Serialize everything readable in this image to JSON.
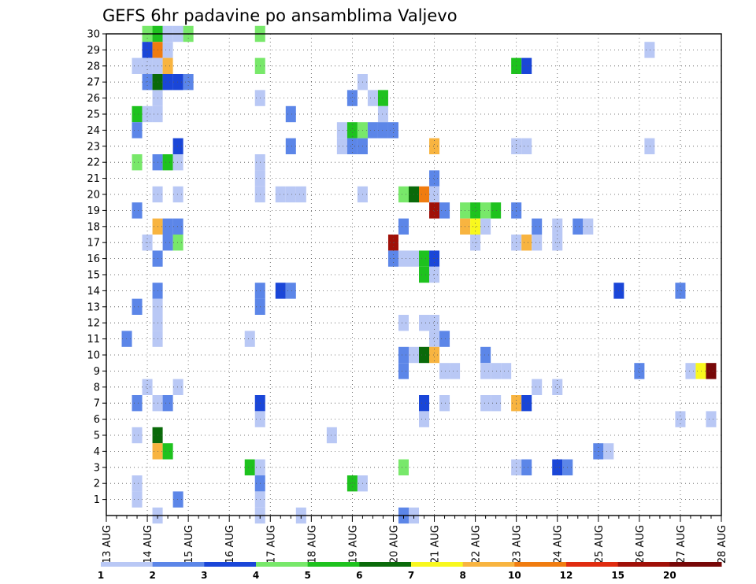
{
  "chart_data": {
    "type": "heatmap",
    "title": "GEFS 6hr padavine po ansamblima Valjevo",
    "xlabel": "",
    "ylabel": "",
    "x_tick_labels": [
      "13 AUG",
      "14 AUG",
      "15 AUG",
      "16 AUG",
      "17 AUG",
      "18 AUG",
      "19 AUG",
      "20 AUG",
      "21 AUG",
      "22 AUG",
      "23 AUG",
      "24 AUG",
      "25 AUG",
      "26 AUG",
      "27 AUG",
      "28 AUG"
    ],
    "y_tick_labels": [
      "1",
      "2",
      "3",
      "4",
      "5",
      "6",
      "7",
      "8",
      "9",
      "10",
      "11",
      "12",
      "13",
      "14",
      "15",
      "16",
      "17",
      "18",
      "19",
      "20",
      "21",
      "22",
      "23",
      "24",
      "25",
      "26",
      "27",
      "28",
      "29",
      "30"
    ],
    "xlim_days": [
      0,
      15
    ],
    "ylim_members": [
      0,
      30
    ],
    "grid": true,
    "colorbar": {
      "position": "bottom",
      "levels": [
        1,
        2,
        3,
        4,
        5,
        6,
        7,
        8,
        10,
        12,
        15,
        20
      ],
      "colors": [
        "#b9c8f5",
        "#5c86e8",
        "#1a46d8",
        "#78e86a",
        "#1ec21e",
        "#0a6a0a",
        "#f8f81e",
        "#f8b440",
        "#f07c10",
        "#e02c10",
        "#a01008",
        "#780808"
      ]
    },
    "cells": [
      {
        "member": 30,
        "step": 4,
        "cls": 4
      },
      {
        "member": 30,
        "step": 5,
        "cls": 5
      },
      {
        "member": 30,
        "step": 6,
        "cls": 1
      },
      {
        "member": 30,
        "step": 7,
        "cls": 1
      },
      {
        "member": 30,
        "step": 8,
        "cls": 4
      },
      {
        "member": 30,
        "step": 15,
        "cls": 4
      },
      {
        "member": 29,
        "step": 4,
        "cls": 3
      },
      {
        "member": 29,
        "step": 5,
        "cls": 9
      },
      {
        "member": 29,
        "step": 6,
        "cls": 1
      },
      {
        "member": 29,
        "step": 53,
        "cls": 1
      },
      {
        "member": 28,
        "step": 3,
        "cls": 1
      },
      {
        "member": 28,
        "step": 4,
        "cls": 1
      },
      {
        "member": 28,
        "step": 5,
        "cls": 1
      },
      {
        "member": 28,
        "step": 6,
        "cls": 8
      },
      {
        "member": 28,
        "step": 15,
        "cls": 4
      },
      {
        "member": 28,
        "step": 40,
        "cls": 5
      },
      {
        "member": 28,
        "step": 41,
        "cls": 3
      },
      {
        "member": 27,
        "step": 4,
        "cls": 2
      },
      {
        "member": 27,
        "step": 5,
        "cls": 6
      },
      {
        "member": 27,
        "step": 6,
        "cls": 3
      },
      {
        "member": 27,
        "step": 7,
        "cls": 3
      },
      {
        "member": 27,
        "step": 8,
        "cls": 2
      },
      {
        "member": 27,
        "step": 25,
        "cls": 1
      },
      {
        "member": 26,
        "step": 5,
        "cls": 1
      },
      {
        "member": 26,
        "step": 15,
        "cls": 1
      },
      {
        "member": 26,
        "step": 24,
        "cls": 2
      },
      {
        "member": 26,
        "step": 26,
        "cls": 1
      },
      {
        "member": 26,
        "step": 27,
        "cls": 5
      },
      {
        "member": 25,
        "step": 3,
        "cls": 5
      },
      {
        "member": 25,
        "step": 4,
        "cls": 1
      },
      {
        "member": 25,
        "step": 5,
        "cls": 1
      },
      {
        "member": 25,
        "step": 18,
        "cls": 2
      },
      {
        "member": 25,
        "step": 27,
        "cls": 1
      },
      {
        "member": 24,
        "step": 3,
        "cls": 2
      },
      {
        "member": 24,
        "step": 23,
        "cls": 1
      },
      {
        "member": 24,
        "step": 24,
        "cls": 5
      },
      {
        "member": 24,
        "step": 25,
        "cls": 4
      },
      {
        "member": 24,
        "step": 26,
        "cls": 2
      },
      {
        "member": 24,
        "step": 27,
        "cls": 2
      },
      {
        "member": 24,
        "step": 28,
        "cls": 2
      },
      {
        "member": 23,
        "step": 7,
        "cls": 3
      },
      {
        "member": 23,
        "step": 18,
        "cls": 2
      },
      {
        "member": 23,
        "step": 23,
        "cls": 1
      },
      {
        "member": 23,
        "step": 24,
        "cls": 2
      },
      {
        "member": 23,
        "step": 25,
        "cls": 2
      },
      {
        "member": 23,
        "step": 32,
        "cls": 8
      },
      {
        "member": 23,
        "step": 40,
        "cls": 1
      },
      {
        "member": 23,
        "step": 41,
        "cls": 1
      },
      {
        "member": 23,
        "step": 53,
        "cls": 1
      },
      {
        "member": 22,
        "step": 3,
        "cls": 4
      },
      {
        "member": 22,
        "step": 5,
        "cls": 2
      },
      {
        "member": 22,
        "step": 6,
        "cls": 5
      },
      {
        "member": 22,
        "step": 7,
        "cls": 1
      },
      {
        "member": 22,
        "step": 15,
        "cls": 1
      },
      {
        "member": 21,
        "step": 15,
        "cls": 1
      },
      {
        "member": 21,
        "step": 32,
        "cls": 2
      },
      {
        "member": 20,
        "step": 5,
        "cls": 1
      },
      {
        "member": 20,
        "step": 7,
        "cls": 1
      },
      {
        "member": 20,
        "step": 15,
        "cls": 1
      },
      {
        "member": 20,
        "step": 17,
        "cls": 1
      },
      {
        "member": 20,
        "step": 18,
        "cls": 1
      },
      {
        "member": 20,
        "step": 19,
        "cls": 1
      },
      {
        "member": 20,
        "step": 25,
        "cls": 1
      },
      {
        "member": 20,
        "step": 29,
        "cls": 4
      },
      {
        "member": 20,
        "step": 30,
        "cls": 6
      },
      {
        "member": 20,
        "step": 31,
        "cls": 9
      },
      {
        "member": 20,
        "step": 32,
        "cls": 1
      },
      {
        "member": 19,
        "step": 3,
        "cls": 2
      },
      {
        "member": 19,
        "step": 32,
        "cls": 11
      },
      {
        "member": 19,
        "step": 33,
        "cls": 2
      },
      {
        "member": 19,
        "step": 35,
        "cls": 4
      },
      {
        "member": 19,
        "step": 36,
        "cls": 5
      },
      {
        "member": 19,
        "step": 37,
        "cls": 4
      },
      {
        "member": 19,
        "step": 38,
        "cls": 5
      },
      {
        "member": 19,
        "step": 40,
        "cls": 2
      },
      {
        "member": 18,
        "step": 5,
        "cls": 8
      },
      {
        "member": 18,
        "step": 6,
        "cls": 2
      },
      {
        "member": 18,
        "step": 7,
        "cls": 2
      },
      {
        "member": 18,
        "step": 29,
        "cls": 2
      },
      {
        "member": 18,
        "step": 35,
        "cls": 8
      },
      {
        "member": 18,
        "step": 36,
        "cls": 7
      },
      {
        "member": 18,
        "step": 37,
        "cls": 1
      },
      {
        "member": 18,
        "step": 42,
        "cls": 2
      },
      {
        "member": 18,
        "step": 44,
        "cls": 1
      },
      {
        "member": 18,
        "step": 46,
        "cls": 2
      },
      {
        "member": 18,
        "step": 47,
        "cls": 1
      },
      {
        "member": 17,
        "step": 4,
        "cls": 1
      },
      {
        "member": 17,
        "step": 6,
        "cls": 2
      },
      {
        "member": 17,
        "step": 7,
        "cls": 4
      },
      {
        "member": 17,
        "step": 28,
        "cls": 11
      },
      {
        "member": 17,
        "step": 36,
        "cls": 1
      },
      {
        "member": 17,
        "step": 40,
        "cls": 1
      },
      {
        "member": 17,
        "step": 41,
        "cls": 8
      },
      {
        "member": 17,
        "step": 42,
        "cls": 1
      },
      {
        "member": 17,
        "step": 44,
        "cls": 1
      },
      {
        "member": 16,
        "step": 5,
        "cls": 2
      },
      {
        "member": 16,
        "step": 28,
        "cls": 2
      },
      {
        "member": 16,
        "step": 29,
        "cls": 1
      },
      {
        "member": 16,
        "step": 30,
        "cls": 1
      },
      {
        "member": 16,
        "step": 31,
        "cls": 5
      },
      {
        "member": 16,
        "step": 32,
        "cls": 3
      },
      {
        "member": 15,
        "step": 31,
        "cls": 5
      },
      {
        "member": 15,
        "step": 32,
        "cls": 1
      },
      {
        "member": 14,
        "step": 15,
        "cls": 2
      },
      {
        "member": 14,
        "step": 17,
        "cls": 3
      },
      {
        "member": 14,
        "step": 18,
        "cls": 2
      },
      {
        "member": 14,
        "step": 5,
        "cls": 2
      },
      {
        "member": 14,
        "step": 50,
        "cls": 3
      },
      {
        "member": 14,
        "step": 56,
        "cls": 2
      },
      {
        "member": 13,
        "step": 3,
        "cls": 2
      },
      {
        "member": 13,
        "step": 5,
        "cls": 1
      },
      {
        "member": 13,
        "step": 15,
        "cls": 2
      },
      {
        "member": 12,
        "step": 5,
        "cls": 1
      },
      {
        "member": 12,
        "step": 29,
        "cls": 1
      },
      {
        "member": 12,
        "step": 31,
        "cls": 1
      },
      {
        "member": 12,
        "step": 32,
        "cls": 1
      },
      {
        "member": 11,
        "step": 2,
        "cls": 2
      },
      {
        "member": 11,
        "step": 5,
        "cls": 1
      },
      {
        "member": 11,
        "step": 14,
        "cls": 1
      },
      {
        "member": 11,
        "step": 32,
        "cls": 1
      },
      {
        "member": 11,
        "step": 33,
        "cls": 2
      },
      {
        "member": 10,
        "step": 29,
        "cls": 2
      },
      {
        "member": 10,
        "step": 30,
        "cls": 1
      },
      {
        "member": 10,
        "step": 31,
        "cls": 6
      },
      {
        "member": 10,
        "step": 32,
        "cls": 8
      },
      {
        "member": 10,
        "step": 37,
        "cls": 2
      },
      {
        "member": 9,
        "step": 29,
        "cls": 2
      },
      {
        "member": 9,
        "step": 33,
        "cls": 1
      },
      {
        "member": 9,
        "step": 34,
        "cls": 1
      },
      {
        "member": 9,
        "step": 37,
        "cls": 1
      },
      {
        "member": 9,
        "step": 38,
        "cls": 1
      },
      {
        "member": 9,
        "step": 39,
        "cls": 1
      },
      {
        "member": 9,
        "step": 52,
        "cls": 2
      },
      {
        "member": 9,
        "step": 57,
        "cls": 1
      },
      {
        "member": 9,
        "step": 58,
        "cls": 7
      },
      {
        "member": 9,
        "step": 59,
        "cls": 12
      },
      {
        "member": 8,
        "step": 4,
        "cls": 1
      },
      {
        "member": 8,
        "step": 7,
        "cls": 1
      },
      {
        "member": 8,
        "step": 42,
        "cls": 1
      },
      {
        "member": 8,
        "step": 44,
        "cls": 1
      },
      {
        "member": 7,
        "step": 3,
        "cls": 2
      },
      {
        "member": 7,
        "step": 5,
        "cls": 1
      },
      {
        "member": 7,
        "step": 6,
        "cls": 2
      },
      {
        "member": 7,
        "step": 15,
        "cls": 3
      },
      {
        "member": 7,
        "step": 31,
        "cls": 3
      },
      {
        "member": 7,
        "step": 33,
        "cls": 1
      },
      {
        "member": 7,
        "step": 37,
        "cls": 1
      },
      {
        "member": 7,
        "step": 38,
        "cls": 1
      },
      {
        "member": 7,
        "step": 40,
        "cls": 8
      },
      {
        "member": 7,
        "step": 41,
        "cls": 3
      },
      {
        "member": 6,
        "step": 15,
        "cls": 1
      },
      {
        "member": 6,
        "step": 31,
        "cls": 1
      },
      {
        "member": 6,
        "step": 56,
        "cls": 1
      },
      {
        "member": 6,
        "step": 59,
        "cls": 1
      },
      {
        "member": 5,
        "step": 3,
        "cls": 1
      },
      {
        "member": 5,
        "step": 5,
        "cls": 6
      },
      {
        "member": 5,
        "step": 22,
        "cls": 1
      },
      {
        "member": 4,
        "step": 5,
        "cls": 8
      },
      {
        "member": 4,
        "step": 6,
        "cls": 5
      },
      {
        "member": 4,
        "step": 48,
        "cls": 2
      },
      {
        "member": 4,
        "step": 49,
        "cls": 1
      },
      {
        "member": 3,
        "step": 14,
        "cls": 5
      },
      {
        "member": 3,
        "step": 15,
        "cls": 1
      },
      {
        "member": 3,
        "step": 29,
        "cls": 4
      },
      {
        "member": 3,
        "step": 40,
        "cls": 1
      },
      {
        "member": 3,
        "step": 41,
        "cls": 2
      },
      {
        "member": 3,
        "step": 44,
        "cls": 3
      },
      {
        "member": 3,
        "step": 45,
        "cls": 2
      },
      {
        "member": 2,
        "step": 3,
        "cls": 1
      },
      {
        "member": 2,
        "step": 15,
        "cls": 2
      },
      {
        "member": 2,
        "step": 24,
        "cls": 5
      },
      {
        "member": 2,
        "step": 25,
        "cls": 1
      },
      {
        "member": 1,
        "step": 3,
        "cls": 1
      },
      {
        "member": 1,
        "step": 7,
        "cls": 2
      },
      {
        "member": 1,
        "step": 15,
        "cls": 1
      },
      {
        "member": 0,
        "step": 5,
        "cls": 1
      },
      {
        "member": 0,
        "step": 15,
        "cls": 1
      },
      {
        "member": 0,
        "step": 19,
        "cls": 1
      },
      {
        "member": 0,
        "step": 29,
        "cls": 2
      },
      {
        "member": 0,
        "step": 30,
        "cls": 1
      }
    ]
  }
}
